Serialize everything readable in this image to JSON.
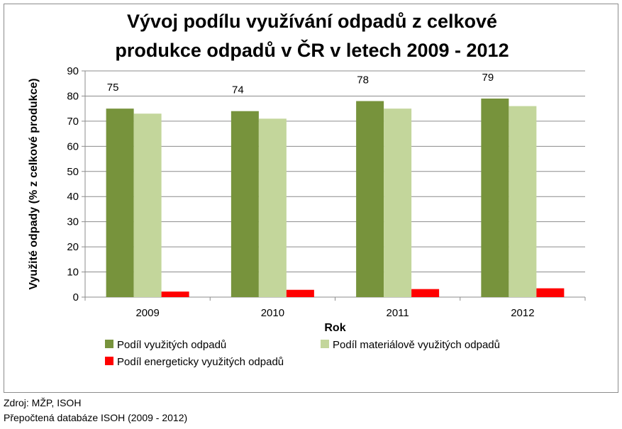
{
  "chart_data": {
    "type": "bar",
    "title": "Vývoj podílu využívání odpadů z celkové produkce odpadů v ČR v letech 2009 - 2012",
    "title_lines": [
      "Vývoj podílu využívání odpadů z celkové",
      "produkce odpadů v ČR v letech 2009 - 2012"
    ],
    "xlabel": "Rok",
    "ylabel": "Využité odpady (% z celkové produkce)",
    "ylim": [
      0,
      90
    ],
    "yticks": [
      0,
      10,
      20,
      30,
      40,
      50,
      60,
      70,
      80,
      90
    ],
    "categories": [
      "2009",
      "2010",
      "2011",
      "2012"
    ],
    "grid": true,
    "legend_position": "bottom",
    "series": [
      {
        "name": "Podíl využitých odpadů",
        "values": [
          75,
          74,
          78,
          79
        ],
        "color": "#77933c",
        "data_labels": [
          "75",
          "74",
          "78",
          "79"
        ]
      },
      {
        "name": "Podíl materiálově využitých odpadů",
        "values": [
          73,
          71,
          75,
          76
        ],
        "color": "#c3d69b"
      },
      {
        "name": "Podíl energeticky využitých odpadů",
        "values": [
          2.2,
          2.9,
          3.2,
          3.5
        ],
        "color": "#ff0000"
      }
    ]
  },
  "source": {
    "line1": "Zdroj: MŽP, ISOH",
    "line2": "Přepočtená databáze ISOH (2009 - 2012)"
  }
}
